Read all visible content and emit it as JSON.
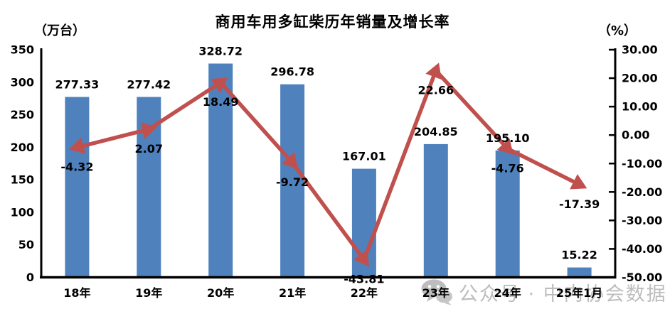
{
  "chart_data": {
    "type": "bar",
    "title": "商用车用多缸柴历年销量及增长率",
    "categories": [
      "18年",
      "19年",
      "20年",
      "21年",
      "22年",
      "23年",
      "24年",
      "25年1月"
    ],
    "series": [
      {
        "name": "销量",
        "type": "bar",
        "axis": "left",
        "color": "#4f81bd",
        "values": [
          277.33,
          277.42,
          328.72,
          296.78,
          167.01,
          204.85,
          195.1,
          15.22
        ],
        "labels": [
          "277.33",
          "277.42",
          "328.72",
          "296.78",
          "167.01",
          "204.85",
          "195.10",
          "15.22"
        ]
      },
      {
        "name": "增长率",
        "type": "line",
        "axis": "right",
        "color": "#c0504d",
        "marker": "triangle-arrowhead",
        "values": [
          -4.32,
          2.07,
          18.49,
          -9.72,
          -43.81,
          22.66,
          -4.76,
          -17.39
        ],
        "labels": [
          "-4.32",
          "2.07",
          "18.49",
          "-9.72",
          "-43.81",
          "22.66",
          "-4.76",
          "-17.39"
        ]
      }
    ],
    "left_axis": {
      "unit": "（万台）",
      "min": 0,
      "max": 350,
      "tick_step": 50,
      "ticks": [
        "0",
        "50",
        "100",
        "150",
        "200",
        "250",
        "300",
        "350"
      ]
    },
    "right_axis": {
      "unit": "（%）",
      "min": -50,
      "max": 30,
      "tick_step": 10,
      "ticks": [
        "-50.00",
        "-40.00",
        "-30.00",
        "-20.00",
        "-10.00",
        "0.00",
        "10.00",
        "20.00",
        "30.00"
      ]
    },
    "grid": false,
    "legend": "none"
  },
  "watermark": {
    "icon": "wechat-icon",
    "text": "公众号 · 中内协会数据"
  },
  "colors": {
    "bar": "#4f81bd",
    "line": "#c0504d",
    "axis": "#000000",
    "label": "#000000",
    "watermark": "#bdbdbd"
  }
}
